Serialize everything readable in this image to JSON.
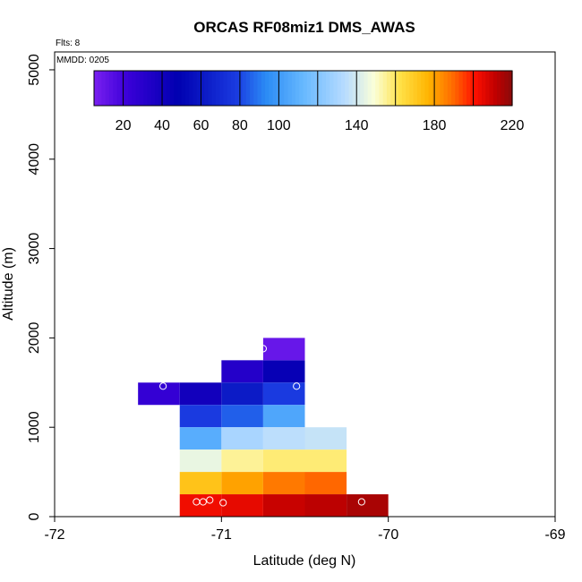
{
  "chart_data": {
    "type": "heatmap",
    "title": "ORCAS RF08miz1 DMS_AWAS",
    "annotations": {
      "flights": "Flts: 8",
      "date": "MMDD: 0205"
    },
    "xlabel": "Latitude (deg N)",
    "ylabel": "Altitude (m)",
    "xlim": [
      -72,
      -69
    ],
    "ylim": [
      0,
      5200
    ],
    "xticks": [
      {
        "value": -72,
        "label": "-72"
      },
      {
        "value": -71,
        "label": "-71"
      },
      {
        "value": -70,
        "label": "-70"
      },
      {
        "value": -69,
        "label": "-69"
      }
    ],
    "yticks": [
      {
        "value": 0,
        "label": "0"
      },
      {
        "value": 1000,
        "label": "1000"
      },
      {
        "value": 2000,
        "label": "2000"
      },
      {
        "value": 3000,
        "label": "3000"
      },
      {
        "value": 4000,
        "label": "4000"
      },
      {
        "value": 5000,
        "label": "5000"
      }
    ],
    "colorbar": {
      "min": 5,
      "max": 220,
      "colors": [
        "#7a20f0",
        "#3a00d8",
        "#0000b0",
        "#1a3ae0",
        "#2a8af5",
        "#66b8ff",
        "#b8dcff",
        "#fbffd8",
        "#ffe24a",
        "#ffb400",
        "#ff6800",
        "#ff1000",
        "#c00000",
        "#8a0a0a"
      ],
      "color_stops": [
        0,
        0.08,
        0.2,
        0.34,
        0.41,
        0.5,
        0.6,
        0.67,
        0.73,
        0.8,
        0.86,
        0.91,
        0.96,
        1.0
      ],
      "dividers": [
        20,
        40,
        60,
        80,
        100,
        120,
        140,
        160,
        180,
        200,
        220
      ],
      "tick_labels": [
        {
          "value": 20,
          "label": "20"
        },
        {
          "value": 40,
          "label": "40"
        },
        {
          "value": 60,
          "label": "60"
        },
        {
          "value": 80,
          "label": "80"
        },
        {
          "value": 100,
          "label": "100"
        },
        {
          "value": 140,
          "label": "140"
        },
        {
          "value": 180,
          "label": "180"
        },
        {
          "value": 220,
          "label": "220"
        }
      ]
    },
    "cells": [
      {
        "lat0": -71.5,
        "lat1": -71.25,
        "alt0": 1250,
        "alt1": 1500,
        "value": 25
      },
      {
        "lat0": -71.25,
        "lat1": -71.0,
        "alt0": 1250,
        "alt1": 1500,
        "value": 40
      },
      {
        "lat0": -71.0,
        "lat1": -70.75,
        "alt0": 1500,
        "alt1": 1750,
        "value": 32
      },
      {
        "lat0": -70.75,
        "lat1": -70.5,
        "alt0": 1500,
        "alt1": 1750,
        "value": 45
      },
      {
        "lat0": -70.75,
        "lat1": -70.5,
        "alt0": 1750,
        "alt1": 2000,
        "value": 10
      },
      {
        "lat0": -71.0,
        "lat1": -70.75,
        "alt0": 1250,
        "alt1": 1500,
        "value": 62
      },
      {
        "lat0": -70.75,
        "lat1": -70.5,
        "alt0": 1250,
        "alt1": 1500,
        "value": 78
      },
      {
        "lat0": -71.25,
        "lat1": -71.0,
        "alt0": 1000,
        "alt1": 1250,
        "value": 78
      },
      {
        "lat0": -71.0,
        "lat1": -70.75,
        "alt0": 1000,
        "alt1": 1250,
        "value": 85
      },
      {
        "lat0": -70.75,
        "lat1": -70.5,
        "alt0": 1000,
        "alt1": 1250,
        "value": 105
      },
      {
        "lat0": -71.25,
        "lat1": -71.0,
        "alt0": 750,
        "alt1": 1000,
        "value": 108
      },
      {
        "lat0": -71.0,
        "lat1": -70.75,
        "alt0": 750,
        "alt1": 1000,
        "value": 130
      },
      {
        "lat0": -70.75,
        "lat1": -70.5,
        "alt0": 750,
        "alt1": 1000,
        "value": 135
      },
      {
        "lat0": -70.5,
        "lat1": -70.25,
        "alt0": 750,
        "alt1": 1000,
        "value": 137
      },
      {
        "lat0": -71.25,
        "lat1": -71.0,
        "alt0": 500,
        "alt1": 750,
        "value": 145
      },
      {
        "lat0": -71.0,
        "lat1": -70.75,
        "alt0": 500,
        "alt1": 750,
        "value": 155
      },
      {
        "lat0": -70.75,
        "lat1": -70.5,
        "alt0": 500,
        "alt1": 750,
        "value": 158
      },
      {
        "lat0": -70.5,
        "lat1": -70.25,
        "alt0": 500,
        "alt1": 750,
        "value": 158
      },
      {
        "lat0": -71.25,
        "lat1": -71.0,
        "alt0": 250,
        "alt1": 500,
        "value": 172
      },
      {
        "lat0": -71.0,
        "lat1": -70.75,
        "alt0": 250,
        "alt1": 500,
        "value": 180
      },
      {
        "lat0": -70.75,
        "lat1": -70.5,
        "alt0": 250,
        "alt1": 500,
        "value": 187
      },
      {
        "lat0": -70.5,
        "lat1": -70.25,
        "alt0": 250,
        "alt1": 500,
        "value": 190
      },
      {
        "lat0": -71.25,
        "lat1": -71.0,
        "alt0": 0,
        "alt1": 250,
        "value": 203
      },
      {
        "lat0": -71.0,
        "lat1": -70.75,
        "alt0": 0,
        "alt1": 250,
        "value": 205
      },
      {
        "lat0": -70.75,
        "lat1": -70.5,
        "alt0": 0,
        "alt1": 250,
        "value": 210
      },
      {
        "lat0": -70.5,
        "lat1": -70.25,
        "alt0": 0,
        "alt1": 250,
        "value": 212
      },
      {
        "lat0": -70.25,
        "lat1": -70.0,
        "alt0": 0,
        "alt1": 250,
        "value": 215
      }
    ],
    "samples": [
      {
        "lat": -70.75,
        "alt": 1880
      },
      {
        "lat": -71.35,
        "alt": 1460
      },
      {
        "lat": -70.55,
        "alt": 1460
      },
      {
        "lat": -71.15,
        "alt": 165
      },
      {
        "lat": -71.11,
        "alt": 165
      },
      {
        "lat": -71.07,
        "alt": 185
      },
      {
        "lat": -70.99,
        "alt": 155
      },
      {
        "lat": -70.16,
        "alt": 165
      }
    ]
  }
}
